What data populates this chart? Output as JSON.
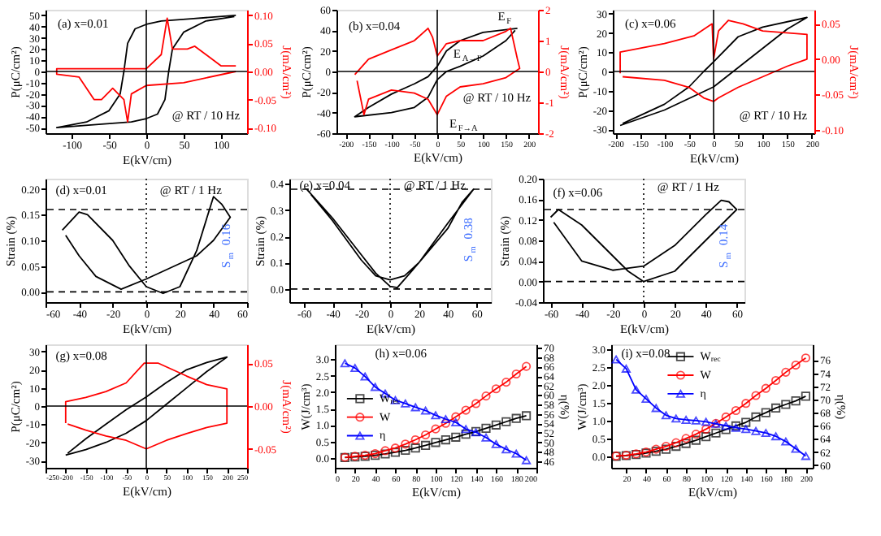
{
  "chart_data": [
    {
      "type": "line",
      "xlabel": "E(kV/cm)",
      "ylabel": "P(μC/cm²)",
      "y2label": "J(mA/cm²)",
      "annotations": [
        "(a) x=0.01",
        "@ RT / 10 Hz"
      ],
      "xlim": [
        -135,
        135
      ],
      "xticks": [
        -100,
        -50,
        0,
        50,
        100
      ],
      "ylim": [
        -55,
        55
      ],
      "yticks": [
        -50,
        -40,
        -30,
        -20,
        -10,
        0,
        10,
        20,
        30,
        40,
        50
      ],
      "y2lim": [
        -0.11,
        0.11
      ],
      "y2ticks": [
        {
          "value": -0.1,
          "label": "-0.10"
        },
        -0.05,
        {
          "value": 0,
          "label": "0.00"
        },
        0.05,
        {
          "value": 0.1,
          "label": "0.10"
        }
      ],
      "ref_lines": [
        {
          "axis": "x",
          "value": 0,
          "line_style": "solid"
        },
        {
          "axis": "y",
          "value": 0,
          "line_style": "solid"
        }
      ],
      "grid": false,
      "legend": false,
      "series": [
        {
          "color": "#000000",
          "x": [
            120,
            60,
            20,
            0,
            -15,
            -25,
            -30,
            -35,
            -50,
            -80,
            -120,
            -60,
            -20,
            0,
            15,
            25,
            30,
            35,
            50,
            80,
            118
          ],
          "values": [
            50,
            47,
            45,
            42,
            38,
            25,
            0,
            -20,
            -35,
            -45,
            -50,
            -47,
            -45,
            -42,
            -38,
            -25,
            0,
            20,
            35,
            45,
            49
          ]
        },
        {
          "color": "#ff0000",
          "axis": "y2",
          "x": [
            120,
            50,
            0,
            -20,
            -25,
            -30,
            -45,
            -60,
            -70,
            -90,
            -120,
            -120,
            -60,
            0,
            20,
            28,
            35,
            55,
            65,
            80,
            100,
            120
          ],
          "values": [
            0.0,
            -0.02,
            -0.025,
            -0.04,
            -0.09,
            -0.05,
            -0.03,
            -0.05,
            -0.05,
            -0.01,
            -0.005,
            0.005,
            0.005,
            0.005,
            0.03,
            0.095,
            0.04,
            0.04,
            0.045,
            0.03,
            0.01,
            0.01
          ]
        }
      ]
    },
    {
      "type": "line",
      "xlabel": "E(kV/cm)",
      "ylabel": "P(μC/cm²)",
      "y2label": "J(mA/cm²)",
      "annotations": [
        "(b) x=0.04",
        "@ RT / 10 Hz",
        "E$_{F}$",
        "E$_{A→F}$",
        "E$_{F→A}$"
      ],
      "xlim": [
        -220,
        220
      ],
      "xticks": [
        -200,
        -150,
        -100,
        -50,
        0,
        50,
        100,
        150,
        200
      ],
      "ylim": [
        -60,
        60
      ],
      "yticks": [
        -60,
        -40,
        -20,
        0,
        20,
        40,
        60
      ],
      "y2lim": [
        -2,
        2
      ],
      "y2ticks": [
        -2,
        -1,
        0,
        1,
        2
      ],
      "ref_lines": [
        {
          "axis": "x",
          "value": 0,
          "line_style": "solid"
        },
        {
          "axis": "y",
          "value": 0,
          "line_style": "solid"
        }
      ],
      "grid": false,
      "legend": false,
      "series": [
        {
          "color": "#000000",
          "x": [
            175,
            100,
            50,
            20,
            0,
            -20,
            -50,
            -100,
            -150,
            -180,
            -100,
            -50,
            -20,
            0,
            20,
            50,
            100,
            150,
            170
          ],
          "values": [
            42,
            38,
            30,
            20,
            5,
            -5,
            -12,
            -22,
            -35,
            -44,
            -40,
            -35,
            -25,
            -8,
            0,
            5,
            15,
            30,
            40
          ]
        },
        {
          "color": "#ff0000",
          "axis": "y2",
          "x": [
            -180,
            -150,
            -100,
            -50,
            -20,
            -10,
            0,
            20,
            50,
            100,
            150,
            160,
            175,
            180,
            150,
            100,
            50,
            20,
            0,
            -20,
            -50,
            -100,
            -150,
            -160,
            -175
          ],
          "values": [
            -0.1,
            0.4,
            0.7,
            1.0,
            1.4,
            1.1,
            0.5,
            0.9,
            1.0,
            1.0,
            1.3,
            1.4,
            0.4,
            0.1,
            -0.2,
            -0.4,
            -0.5,
            -0.8,
            -1.4,
            -0.9,
            -0.7,
            -0.6,
            -0.9,
            -1.4,
            -0.3
          ]
        }
      ]
    },
    {
      "type": "line",
      "xlabel": "E(kV/cm)",
      "ylabel": "P(μC/cm²)",
      "y2label": "J(mA/cm²)",
      "annotations": [
        "(c) x=0.06",
        "@ RT / 10 Hz"
      ],
      "xlim": [
        -205,
        205
      ],
      "xticks": [
        -200,
        -150,
        -100,
        -50,
        0,
        50,
        100,
        150,
        200
      ],
      "ylim": [
        -32,
        32
      ],
      "yticks": [
        -30,
        -20,
        -10,
        0,
        10,
        20,
        30
      ],
      "y2lim": [
        -0.105,
        0.07
      ],
      "y2ticks": [
        {
          "value": -0.1,
          "label": "-0.10"
        },
        -0.05,
        {
          "value": 0,
          "label": "0.00"
        },
        0.05
      ],
      "ref_lines": [
        {
          "axis": "x",
          "value": 0,
          "line_style": "solid"
        },
        {
          "axis": "y",
          "value": 0,
          "line_style": "solid"
        }
      ],
      "grid": false,
      "legend": false,
      "series": [
        {
          "color": "#000000",
          "x": [
            -190,
            -100,
            -50,
            0,
            50,
            100,
            150,
            190,
            100,
            50,
            0,
            -20,
            -50,
            -100,
            -185
          ],
          "values": [
            -28,
            -20,
            -14,
            -8,
            2,
            12,
            22,
            28,
            23,
            18,
            5,
            0,
            -8,
            -17,
            -27
          ]
        },
        {
          "color": "#ff0000",
          "axis": "y2",
          "x": [
            -190,
            -190,
            -100,
            -40,
            -3,
            0,
            10,
            30,
            60,
            100,
            190,
            190,
            150,
            100,
            50,
            10,
            0,
            -20,
            -50,
            -100,
            -185
          ],
          "values": [
            -0.02,
            0.01,
            0.022,
            0.033,
            0.05,
            0.0,
            0.04,
            0.055,
            0.05,
            0.04,
            0.035,
            0.0,
            -0.01,
            -0.025,
            -0.04,
            -0.055,
            -0.06,
            -0.055,
            -0.04,
            -0.03,
            -0.025
          ]
        }
      ]
    },
    {
      "type": "line",
      "xlabel": "E(kV/cm)",
      "ylabel": "Strain (%)",
      "annotations": [
        "(d) x=0.01",
        "@ RT / 1 Hz",
        "S$_{m}$ 0.16"
      ],
      "xlim": [
        -60,
        60
      ],
      "xticks": [
        -60,
        -40,
        -20,
        0,
        20,
        40,
        60
      ],
      "ylim": [
        -0.02,
        0.22
      ],
      "yticks": [
        {
          "value": 0,
          "label": "0.00"
        },
        0.05,
        {
          "value": 0.1,
          "label": "0.10"
        },
        0.15,
        {
          "value": 0.2,
          "label": "0.20"
        }
      ],
      "ref_lines": [
        {
          "axis": "x",
          "value": 0,
          "line_style": "dotted"
        },
        {
          "axis": "y",
          "value": 0,
          "line_style": "dashed"
        },
        {
          "axis": "y",
          "value": 0.16,
          "line_style": "dashed"
        }
      ],
      "grid": false,
      "legend": false,
      "series": [
        {
          "color": "#000000",
          "x": [
            -50,
            -40,
            -35,
            -20,
            -10,
            0,
            10,
            20,
            30,
            40,
            45,
            50,
            40,
            30,
            10,
            0,
            -15,
            -30,
            -40,
            -48
          ],
          "values": [
            0.12,
            0.155,
            0.15,
            0.1,
            0.05,
            0.01,
            -0.003,
            0.01,
            0.08,
            0.185,
            0.17,
            0.145,
            0.1,
            0.07,
            0.04,
            0.025,
            0.005,
            0.03,
            0.07,
            0.11
          ]
        }
      ]
    },
    {
      "type": "line",
      "xlabel": "E(kV/cm)",
      "ylabel": "Strain (%)",
      "annotations": [
        "(e) x=0.04",
        "@ RT / 1 Hz",
        "S$_{m}$ 0.38"
      ],
      "xlim": [
        -70,
        70
      ],
      "xticks": [
        -60,
        -40,
        -20,
        0,
        20,
        40,
        60
      ],
      "ylim": [
        -0.05,
        0.42
      ],
      "yticks": [
        {
          "value": 0,
          "label": "0.0"
        },
        0.1,
        0.2,
        0.3,
        0.4
      ],
      "ref_lines": [
        {
          "axis": "x",
          "value": 0,
          "line_style": "dotted"
        },
        {
          "axis": "y",
          "value": 0,
          "line_style": "dashed"
        },
        {
          "axis": "y",
          "value": 0.38,
          "line_style": "dashed"
        }
      ],
      "grid": false,
      "legend": false,
      "series": [
        {
          "color": "#000000",
          "x": [
            -58,
            -40,
            -20,
            -10,
            0,
            5,
            20,
            40,
            58,
            50,
            40,
            20,
            10,
            0,
            -10,
            -20,
            -40,
            -55
          ],
          "values": [
            0.38,
            0.27,
            0.13,
            0.06,
            0.01,
            0.005,
            0.1,
            0.25,
            0.38,
            0.33,
            0.23,
            0.1,
            0.05,
            0.035,
            0.05,
            0.11,
            0.26,
            0.36
          ]
        }
      ]
    },
    {
      "type": "line",
      "xlabel": "E(kV/cm)",
      "ylabel": "Strain (%)",
      "annotations": [
        "(f) x=0.06",
        "@ RT / 1 Hz",
        "S$_{m}$ 0.14"
      ],
      "xlim": [
        -65,
        65
      ],
      "xticks": [
        -60,
        -40,
        -20,
        0,
        20,
        40,
        60
      ],
      "ylim": [
        -0.04,
        0.2
      ],
      "yticks": [
        -0.04,
        {
          "value": 0,
          "label": "0.00"
        },
        0.04,
        0.08,
        0.12,
        0.16,
        {
          "value": 0.2,
          "label": "0.20"
        }
      ],
      "ref_lines": [
        {
          "axis": "x",
          "value": 0,
          "line_style": "dotted"
        },
        {
          "axis": "y",
          "value": 0,
          "line_style": "dashed"
        },
        {
          "axis": "y",
          "value": 0.14,
          "line_style": "dashed"
        }
      ],
      "grid": false,
      "legend": false,
      "series": [
        {
          "color": "#000000",
          "x": [
            -60,
            -55,
            -40,
            -20,
            -10,
            0,
            20,
            40,
            60,
            55,
            50,
            40,
            20,
            0,
            -20,
            -40,
            -58
          ],
          "values": [
            0.125,
            0.14,
            0.11,
            0.05,
            0.02,
            0.0,
            0.02,
            0.08,
            0.14,
            0.155,
            0.158,
            0.13,
            0.07,
            0.03,
            0.022,
            0.04,
            0.115
          ]
        }
      ]
    },
    {
      "type": "line",
      "xlabel": "E(kV/cm)",
      "ylabel": "P(μC/cm²)",
      "y2label": "J(mA/cm²)",
      "annotations": [
        "(g) x=0.08"
      ],
      "xlim": [
        -250,
        250
      ],
      "xticks": [
        -250,
        -200,
        -150,
        -100,
        -50,
        0,
        50,
        100,
        150,
        200,
        250
      ],
      "ylim": [
        -34,
        34
      ],
      "yticks": [
        -30,
        -20,
        -10,
        0,
        10,
        20,
        30
      ],
      "y2lim": [
        -0.072,
        0.072
      ],
      "y2ticks": [
        -0.05,
        {
          "value": 0,
          "label": "0.00"
        },
        0.05
      ],
      "ref_lines": [
        {
          "axis": "x",
          "value": 0,
          "line_style": "solid"
        },
        {
          "axis": "y",
          "value": 0,
          "line_style": "solid"
        }
      ],
      "grid": false,
      "legend": false,
      "series": [
        {
          "color": "#000000",
          "x": [
            -200,
            -150,
            -100,
            -50,
            0,
            50,
            100,
            150,
            200,
            150,
            100,
            50,
            0,
            -50,
            -100,
            -150,
            -195
          ],
          "values": [
            -27,
            -24,
            -20,
            -15,
            -8,
            1,
            10,
            19,
            27,
            24,
            20,
            13,
            5,
            -2,
            -10,
            -18,
            -26
          ]
        },
        {
          "color": "#ff0000",
          "axis": "y2",
          "x": [
            -200,
            -200,
            -150,
            -100,
            -50,
            -5,
            30,
            100,
            150,
            200,
            200,
            150,
            100,
            50,
            0,
            -50,
            -100,
            -150,
            -195
          ],
          "values": [
            -0.02,
            0.005,
            0.01,
            0.017,
            0.027,
            0.05,
            0.05,
            0.035,
            0.025,
            0.02,
            -0.02,
            -0.025,
            -0.032,
            -0.04,
            -0.05,
            -0.04,
            -0.035,
            -0.028,
            -0.021
          ]
        }
      ]
    },
    {
      "type": "line",
      "xlabel": "E(kV/cm)",
      "ylabel": "W(J/cm³)",
      "y2label": "η(%)",
      "annotations": [
        "(h) x=0.06"
      ],
      "xlim": [
        0,
        200
      ],
      "xticks": [
        0,
        20,
        40,
        60,
        80,
        100,
        120,
        140,
        160,
        180,
        200
      ],
      "ylim": [
        -0.3,
        3.45
      ],
      "yticks": [
        {
          "value": 0,
          "label": "0.0"
        },
        0.5,
        {
          "value": 1,
          "label": "1.0"
        },
        1.5,
        {
          "value": 2,
          "label": "2.0"
        },
        2.5,
        {
          "value": 3,
          "label": "3.0"
        }
      ],
      "y2lim": [
        44.6,
        70.7
      ],
      "y2ticks": [
        46,
        48,
        50,
        52,
        54,
        56,
        58,
        60,
        62,
        64,
        66,
        68,
        70
      ],
      "grid": false,
      "legend": "left",
      "x": [
        10,
        20,
        30,
        40,
        50,
        60,
        70,
        80,
        90,
        100,
        110,
        120,
        130,
        140,
        150,
        160,
        170,
        180,
        190
      ],
      "series": [
        {
          "name": "W$_{rec}$",
          "color": "#000000",
          "marker": "square",
          "values": [
            0.01,
            0.03,
            0.05,
            0.08,
            0.12,
            0.17,
            0.23,
            0.3,
            0.38,
            0.47,
            0.55,
            0.63,
            0.72,
            0.8,
            0.9,
            1.0,
            1.1,
            1.2,
            1.28
          ]
        },
        {
          "name": "W",
          "color": "#ff0000",
          "marker": "circle",
          "values": [
            0.02,
            0.05,
            0.08,
            0.13,
            0.22,
            0.3,
            0.42,
            0.55,
            0.7,
            0.88,
            1.05,
            1.25,
            1.45,
            1.65,
            1.88,
            2.1,
            2.3,
            2.55,
            2.78
          ]
        },
        {
          "name": "η",
          "color": "#0000ff",
          "marker": "triangle",
          "axis": "y2",
          "values": [
            66.7,
            65.7,
            63.9,
            61.7,
            60.3,
            58.9,
            58.2,
            57.4,
            56.7,
            55.7,
            54.9,
            54.2,
            52.8,
            52.1,
            51.0,
            49.6,
            48.5,
            47.6,
            46.2
          ]
        }
      ]
    },
    {
      "type": "line",
      "xlabel": "E(kV/cm)",
      "ylabel": "W(J/cm³)",
      "y2label": "η(%)",
      "annotations": [
        "(i) x=0.08"
      ],
      "xlim": [
        5,
        207
      ],
      "xticks": [
        20,
        40,
        60,
        80,
        100,
        120,
        140,
        160,
        180,
        200
      ],
      "ylim": [
        -0.32,
        3.13
      ],
      "yticks": [
        {
          "value": 0,
          "label": "0.0"
        },
        0.5,
        {
          "value": 1,
          "label": "1.0"
        },
        1.5,
        {
          "value": 2,
          "label": "2.0"
        },
        2.5,
        {
          "value": 3,
          "label": "3.0"
        }
      ],
      "y2lim": [
        59.6,
        78.4
      ],
      "y2ticks": [
        60,
        62,
        64,
        66,
        68,
        70,
        72,
        74,
        76
      ],
      "grid": false,
      "legend": "top",
      "x": [
        10,
        20,
        30,
        40,
        50,
        60,
        70,
        80,
        90,
        100,
        110,
        120,
        130,
        140,
        150,
        160,
        170,
        180,
        190,
        200
      ],
      "series": [
        {
          "name": "W$_{rec}$",
          "color": "#000000",
          "marker": "square",
          "values": [
            0.0,
            0.02,
            0.05,
            0.09,
            0.14,
            0.2,
            0.28,
            0.36,
            0.45,
            0.55,
            0.65,
            0.75,
            0.85,
            0.95,
            1.1,
            1.22,
            1.35,
            1.45,
            1.55,
            1.68
          ]
        },
        {
          "name": "W",
          "color": "#ff0000",
          "marker": "circle",
          "values": [
            0.01,
            0.03,
            0.07,
            0.12,
            0.2,
            0.28,
            0.38,
            0.5,
            0.62,
            0.76,
            0.92,
            1.1,
            1.28,
            1.48,
            1.7,
            1.9,
            2.12,
            2.35,
            2.55,
            2.75
          ]
        },
        {
          "name": "η",
          "color": "#0000ff",
          "marker": "triangle",
          "axis": "y2",
          "values": [
            76.1,
            74.7,
            71.5,
            70.1,
            68.7,
            67.6,
            67.1,
            66.9,
            66.8,
            66.6,
            66.3,
            66.0,
            65.7,
            65.5,
            65.2,
            64.9,
            64.4,
            63.6,
            62.5,
            61.4
          ]
        }
      ]
    }
  ]
}
